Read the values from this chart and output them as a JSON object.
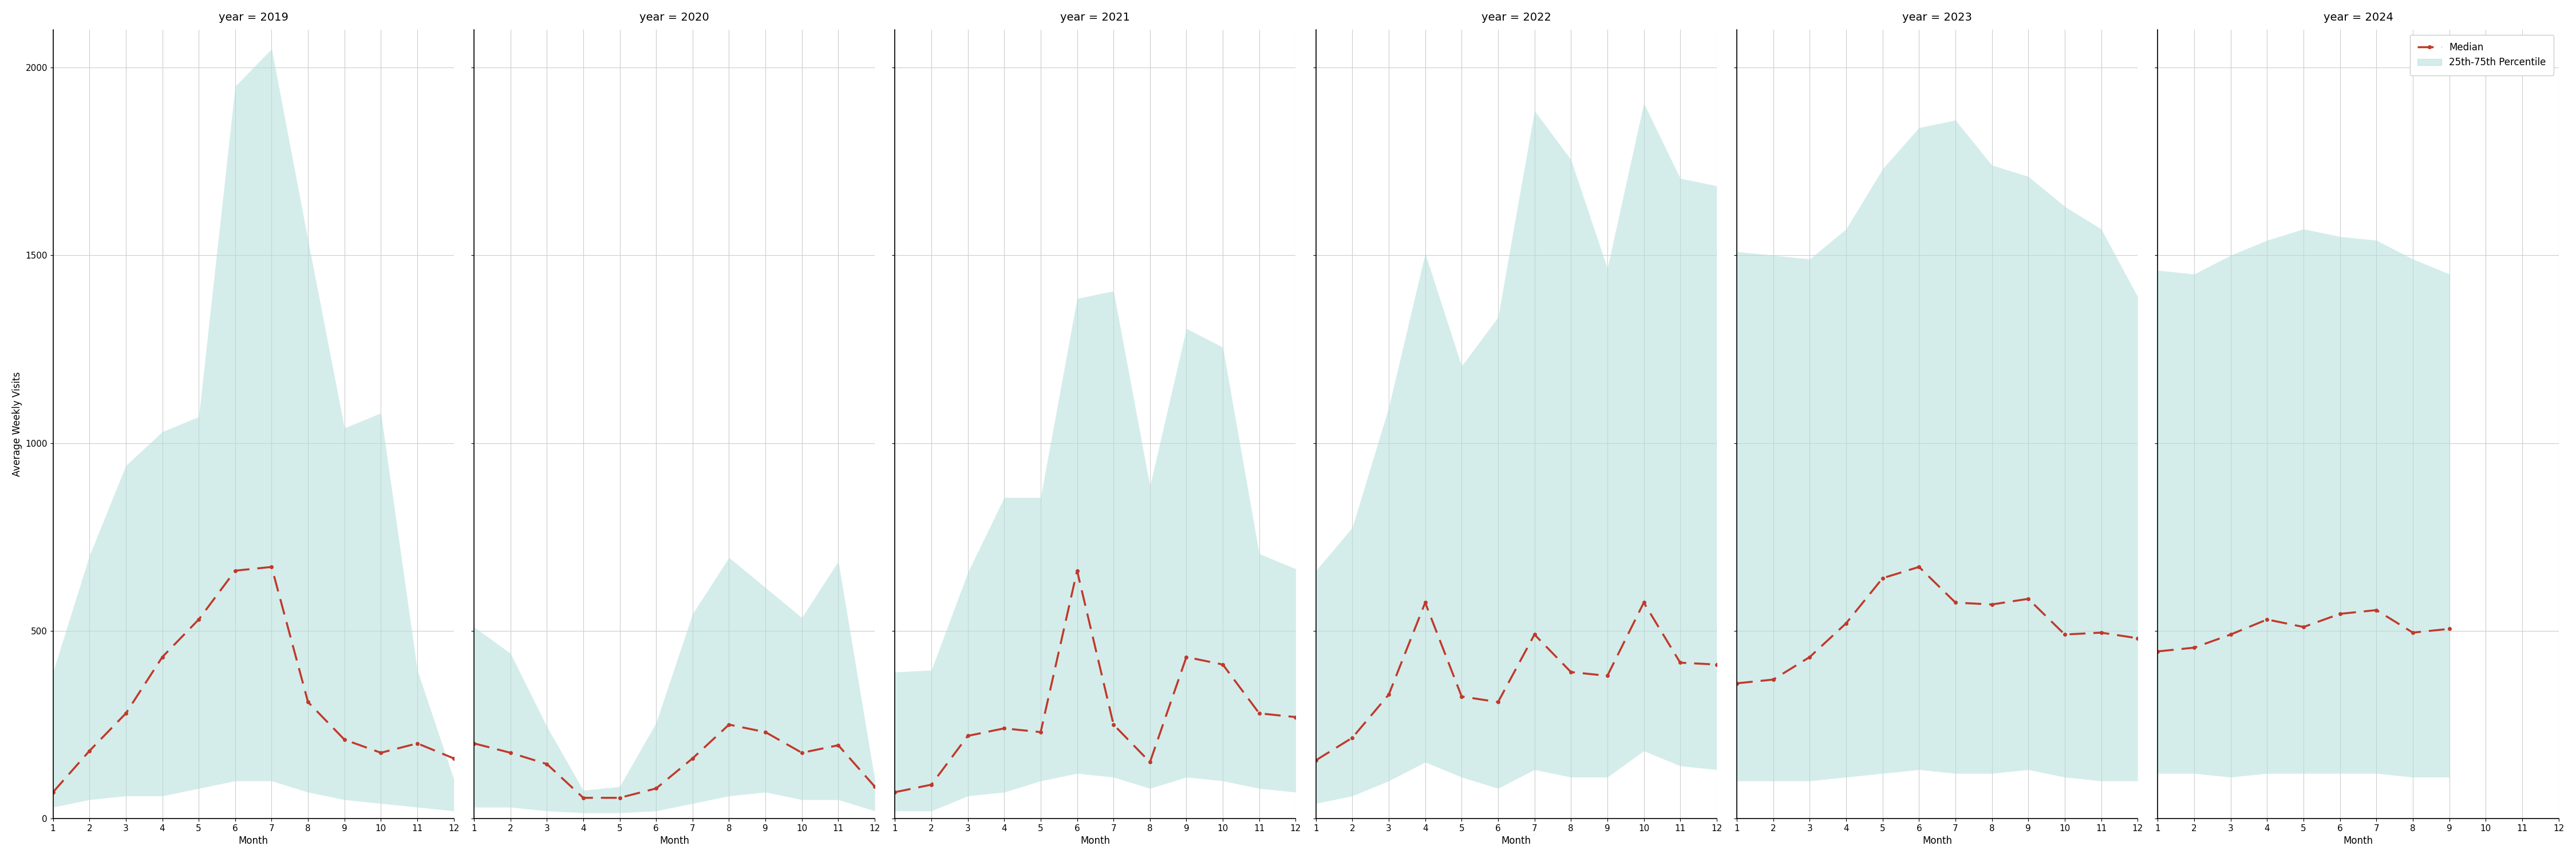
{
  "years": [
    2019,
    2020,
    2021,
    2022,
    2023,
    2024
  ],
  "months": [
    1,
    2,
    3,
    4,
    5,
    6,
    7,
    8,
    9,
    10,
    11,
    12
  ],
  "median": {
    "2019": [
      70,
      180,
      280,
      430,
      530,
      660,
      670,
      310,
      210,
      175,
      200,
      160
    ],
    "2020": [
      200,
      175,
      145,
      55,
      55,
      80,
      160,
      250,
      230,
      175,
      195,
      85
    ],
    "2021": [
      70,
      90,
      220,
      240,
      230,
      660,
      250,
      150,
      430,
      410,
      280,
      270
    ],
    "2022": [
      155,
      215,
      330,
      575,
      325,
      310,
      490,
      390,
      380,
      575,
      415,
      410
    ],
    "2023": [
      360,
      370,
      430,
      520,
      640,
      670,
      575,
      570,
      585,
      490,
      495,
      480
    ],
    "2024": [
      445,
      455,
      490,
      530,
      510,
      545,
      555,
      495,
      505,
      null,
      null,
      null
    ]
  },
  "q25": {
    "2019": [
      30,
      50,
      60,
      60,
      80,
      100,
      100,
      70,
      50,
      40,
      30,
      20
    ],
    "2020": [
      30,
      30,
      20,
      15,
      15,
      20,
      40,
      60,
      70,
      50,
      50,
      20
    ],
    "2021": [
      20,
      20,
      60,
      70,
      100,
      120,
      110,
      80,
      110,
      100,
      80,
      70
    ],
    "2022": [
      40,
      60,
      100,
      150,
      110,
      80,
      130,
      110,
      110,
      180,
      140,
      130
    ],
    "2023": [
      100,
      100,
      100,
      110,
      120,
      130,
      120,
      120,
      130,
      110,
      100,
      100
    ],
    "2024": [
      120,
      120,
      110,
      120,
      120,
      120,
      120,
      110,
      110,
      null,
      null,
      null
    ]
  },
  "q75": {
    "2019": [
      390,
      700,
      940,
      1030,
      1070,
      1950,
      2050,
      1540,
      1040,
      1080,
      395,
      105
    ],
    "2020": [
      510,
      440,
      245,
      75,
      85,
      255,
      545,
      695,
      615,
      535,
      685,
      105
    ],
    "2021": [
      390,
      395,
      655,
      855,
      855,
      1385,
      1405,
      885,
      1305,
      1255,
      705,
      665
    ],
    "2022": [
      660,
      775,
      1095,
      1505,
      1205,
      1335,
      1885,
      1755,
      1465,
      1905,
      1705,
      1685
    ],
    "2023": [
      1510,
      1500,
      1490,
      1570,
      1730,
      1840,
      1860,
      1740,
      1710,
      1630,
      1570,
      1390
    ],
    "2024": [
      1460,
      1450,
      1500,
      1540,
      1570,
      1550,
      1540,
      1490,
      1450,
      null,
      null,
      null
    ]
  },
  "ylim": [
    0,
    2100
  ],
  "yticks": [
    0,
    500,
    1000,
    1500,
    2000
  ],
  "fill_color": "#b2dfdb",
  "fill_alpha": 0.55,
  "line_color": "#c0392b",
  "ylabel": "Average Weekly Visits",
  "xlabel": "Month",
  "legend_labels": [
    "Median",
    "25th-75th Percentile"
  ],
  "title_fontsize": 14,
  "label_fontsize": 12,
  "tick_fontsize": 11,
  "bg_color": "#ffffff",
  "grid_color": "#cccccc"
}
